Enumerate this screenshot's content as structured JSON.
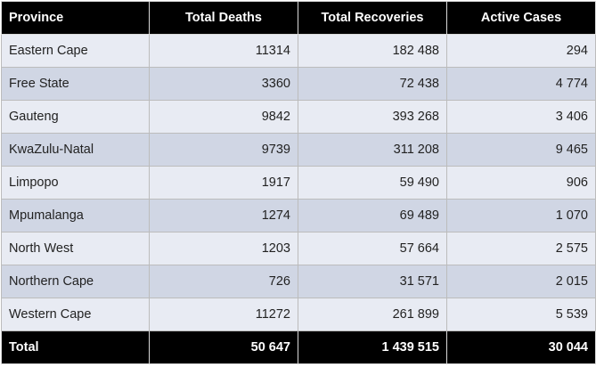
{
  "table": {
    "headers": [
      "Province",
      "Total Deaths",
      "Total Recoveries",
      "Active Cases"
    ],
    "rows": [
      [
        "Eastern Cape",
        "11314",
        "182 488",
        "294"
      ],
      [
        "Free State",
        "3360",
        "72 438",
        "4 774"
      ],
      [
        "Gauteng",
        "9842",
        "393 268",
        "3 406"
      ],
      [
        "KwaZulu-Natal",
        "9739",
        "311 208",
        "9 465"
      ],
      [
        "Limpopo",
        "1917",
        "59 490",
        "906"
      ],
      [
        "Mpumalanga",
        "1274",
        "69 489",
        "1 070"
      ],
      [
        "North West",
        "1203",
        "57 664",
        "2 575"
      ],
      [
        "Northern Cape",
        "726",
        "31 571",
        "2 015"
      ],
      [
        "Western Cape",
        "11272",
        "261 899",
        "5 539"
      ]
    ],
    "total": [
      "Total",
      "50 647",
      "1 439 515",
      "30 044"
    ]
  }
}
